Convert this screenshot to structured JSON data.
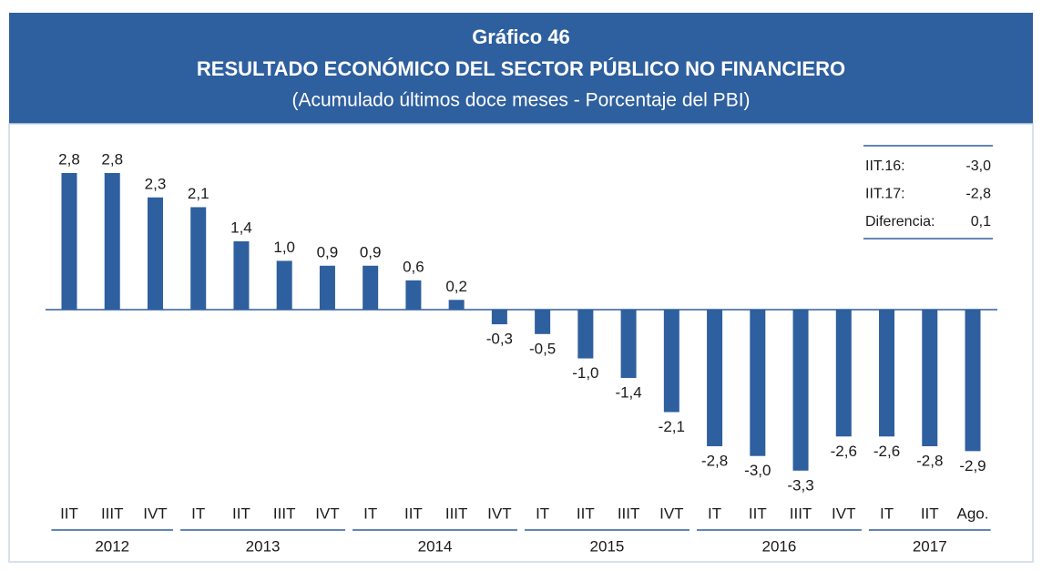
{
  "chart_data": {
    "type": "bar",
    "title": "Gráfico 46",
    "subtitle": "RESULTADO ECONÓMICO DEL SECTOR PÚBLICO NO FINANCIERO",
    "description": "(Acumulado últimos doce meses - Porcentaje del PBI)",
    "category_groups": [
      {
        "name": "2012",
        "categories": [
          "IIT",
          "IIIT",
          "IVT"
        ]
      },
      {
        "name": "2013",
        "categories": [
          "IT",
          "IIT",
          "IIIT",
          "IVT"
        ]
      },
      {
        "name": "2014",
        "categories": [
          "IT",
          "IIT",
          "IIIT",
          "IVT"
        ]
      },
      {
        "name": "2015",
        "categories": [
          "IT",
          "IIT",
          "IIIT",
          "IVT"
        ]
      },
      {
        "name": "2016",
        "categories": [
          "IT",
          "IIT",
          "IIIT",
          "IVT"
        ]
      },
      {
        "name": "2017",
        "categories": [
          "IT",
          "IIT",
          "Ago."
        ]
      }
    ],
    "values": [
      2.8,
      2.8,
      2.3,
      2.1,
      1.4,
      1.0,
      0.9,
      0.9,
      0.6,
      0.2,
      -0.3,
      -0.5,
      -1.0,
      -1.4,
      -2.1,
      -2.8,
      -3.0,
      -3.3,
      -2.6,
      -2.6,
      -2.8,
      -2.9
    ],
    "value_labels": [
      "2,8",
      "2,8",
      "2,3",
      "2,1",
      "1,4",
      "1,0",
      "0,9",
      "0,9",
      "0,6",
      "0,2",
      "-0,3",
      "-0,5",
      "-1,0",
      "-1,4",
      "-2,1",
      "-2,8",
      "-3,0",
      "-3,3",
      "-2,6",
      "-2,6",
      "-2,8",
      "-2,9"
    ],
    "color": "#2e5f9e",
    "inset_table": [
      [
        "IIT.16:",
        "-3,0"
      ],
      [
        "IIT.17:",
        "-2,8"
      ],
      [
        "Diferencia:",
        "0,1"
      ]
    ]
  }
}
